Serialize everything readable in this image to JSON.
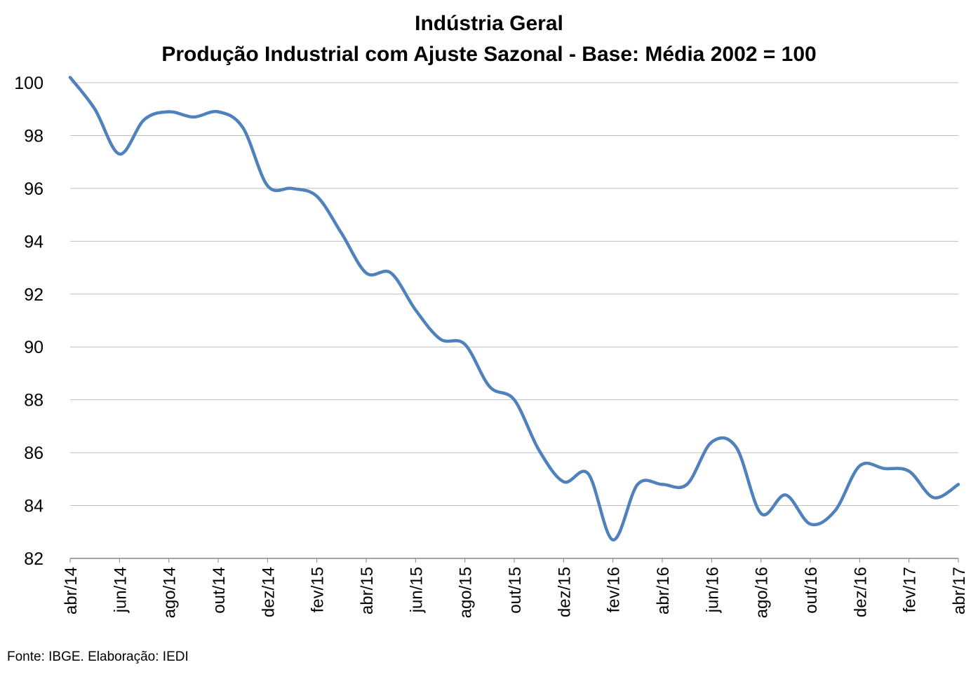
{
  "chart_data": {
    "type": "line",
    "title": "Indústria Geral",
    "subtitle": "Produção Industrial com Ajuste Sazonal - Base: Média 2002 = 100",
    "xlabel": "",
    "ylabel": "",
    "ylim": [
      82,
      100
    ],
    "yticks": [
      82,
      84,
      86,
      88,
      90,
      92,
      94,
      96,
      98,
      100
    ],
    "grid": true,
    "legend": "none",
    "x": [
      "abr/14",
      "mai/14",
      "jun/14",
      "jul/14",
      "ago/14",
      "set/14",
      "out/14",
      "nov/14",
      "dez/14",
      "jan/15",
      "fev/15",
      "mar/15",
      "abr/15",
      "mai/15",
      "jun/15",
      "jul/15",
      "ago/15",
      "set/15",
      "out/15",
      "nov/15",
      "dez/15",
      "jan/16",
      "fev/16",
      "mar/16",
      "abr/16",
      "mai/16",
      "jun/16",
      "jul/16",
      "ago/16",
      "set/16",
      "out/16",
      "nov/16",
      "dez/16",
      "jan/17",
      "fev/17",
      "mar/17",
      "abr/17"
    ],
    "xtick_labels": [
      "abr/14",
      "jun/14",
      "ago/14",
      "out/14",
      "dez/14",
      "fev/15",
      "abr/15",
      "jun/15",
      "ago/15",
      "out/15",
      "dez/15",
      "fev/16",
      "abr/16",
      "jun/16",
      "ago/16",
      "out/16",
      "dez/16",
      "fev/17",
      "abr/17"
    ],
    "series": [
      {
        "color": "#4f81bd",
        "values": [
          100.2,
          99.0,
          97.3,
          98.6,
          98.9,
          98.7,
          98.9,
          98.3,
          96.1,
          96.0,
          95.7,
          94.3,
          92.8,
          92.8,
          91.4,
          90.3,
          90.1,
          88.5,
          88.0,
          86.1,
          84.9,
          85.2,
          82.7,
          84.8,
          84.8,
          84.8,
          86.4,
          86.2,
          83.7,
          84.4,
          83.3,
          83.8,
          85.5,
          85.4,
          85.3,
          84.3,
          84.8
        ]
      }
    ]
  },
  "footer": {
    "source": "Fonte: IBGE. Elaboração: IEDI"
  }
}
